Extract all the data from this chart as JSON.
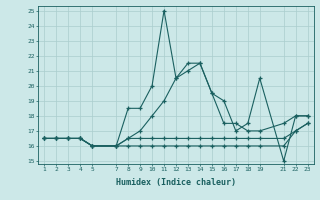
{
  "xlabel": "Humidex (Indice chaleur)",
  "ylabel": "",
  "bg_color": "#cce8e8",
  "grid_color": "#aacece",
  "line_color": "#1a6060",
  "xlim": [
    0.5,
    23.5
  ],
  "ylim": [
    14.8,
    25.3
  ],
  "xticks": [
    1,
    2,
    3,
    4,
    5,
    7,
    8,
    9,
    10,
    11,
    12,
    13,
    14,
    15,
    16,
    17,
    18,
    19,
    21,
    22,
    23
  ],
  "yticks": [
    15,
    16,
    17,
    18,
    19,
    20,
    21,
    22,
    23,
    24,
    25
  ],
  "series": [
    {
      "x": [
        1,
        2,
        3,
        4,
        5,
        7,
        8,
        9,
        10,
        11,
        12,
        13,
        14,
        15,
        16,
        17,
        18,
        19,
        21,
        22,
        23
      ],
      "y": [
        16.5,
        16.5,
        16.5,
        16.5,
        16.0,
        16.0,
        18.5,
        18.5,
        20.0,
        25.0,
        20.5,
        21.5,
        21.5,
        19.5,
        19.0,
        17.0,
        17.5,
        20.5,
        15.0,
        18.0,
        18.0
      ]
    },
    {
      "x": [
        1,
        2,
        3,
        4,
        5,
        7,
        8,
        9,
        10,
        11,
        12,
        13,
        14,
        15,
        16,
        17,
        18,
        19,
        21,
        22,
        23
      ],
      "y": [
        16.5,
        16.5,
        16.5,
        16.5,
        16.0,
        16.0,
        16.5,
        17.0,
        18.0,
        19.0,
        20.5,
        21.0,
        21.5,
        19.5,
        17.5,
        17.5,
        17.0,
        17.0,
        17.5,
        18.0,
        18.0
      ]
    },
    {
      "x": [
        1,
        2,
        3,
        4,
        5,
        7,
        8,
        9,
        10,
        11,
        12,
        13,
        14,
        15,
        16,
        17,
        18,
        19,
        21,
        22,
        23
      ],
      "y": [
        16.5,
        16.5,
        16.5,
        16.5,
        16.0,
        16.0,
        16.5,
        16.5,
        16.5,
        16.5,
        16.5,
        16.5,
        16.5,
        16.5,
        16.5,
        16.5,
        16.5,
        16.5,
        16.5,
        17.0,
        17.5
      ]
    },
    {
      "x": [
        1,
        2,
        3,
        4,
        5,
        7,
        8,
        9,
        10,
        11,
        12,
        13,
        14,
        15,
        16,
        17,
        18,
        19,
        21,
        22,
        23
      ],
      "y": [
        16.5,
        16.5,
        16.5,
        16.5,
        16.0,
        16.0,
        16.0,
        16.0,
        16.0,
        16.0,
        16.0,
        16.0,
        16.0,
        16.0,
        16.0,
        16.0,
        16.0,
        16.0,
        16.0,
        17.0,
        17.5
      ]
    }
  ]
}
